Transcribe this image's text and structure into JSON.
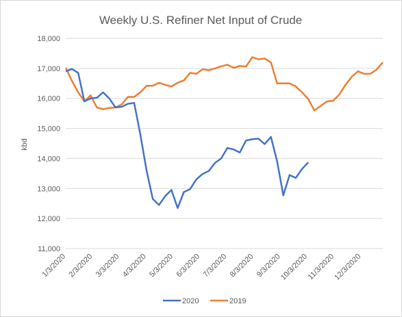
{
  "chart_data": {
    "type": "line",
    "title": "Weekly U.S. Refiner Net Input of Crude",
    "xlabel": "",
    "ylabel": "kbd",
    "ylim": [
      11000,
      18000
    ],
    "yticks": [
      "11,000",
      "12,000",
      "13,000",
      "14,000",
      "15,000",
      "16,000",
      "17,000",
      "18,000"
    ],
    "xticks": [
      "1/3/2020",
      "2/3/2020",
      "3/3/2020",
      "4/3/2020",
      "5/3/2020",
      "6/3/2020",
      "7/3/2020",
      "8/3/2020",
      "9/3/2020",
      "10/3/2020",
      "11/3/2020",
      "12/3/2020"
    ],
    "grid": "horizontal",
    "legend_position": "bottom",
    "series": [
      {
        "name": "2020",
        "color": "#4472c4",
        "values": [
          16900,
          16980,
          16850,
          15900,
          16000,
          16020,
          16200,
          16000,
          15700,
          15720,
          15820,
          15850,
          14800,
          13600,
          12650,
          12450,
          12750,
          12950,
          12350,
          12880,
          12980,
          13300,
          13480,
          13580,
          13850,
          14000,
          14350,
          14300,
          14200,
          14600,
          14640,
          14660,
          14480,
          14720,
          13900,
          12770,
          13450,
          13350,
          13650,
          13870
        ]
      },
      {
        "name": "2019",
        "color": "#ed7d31",
        "values": [
          17020,
          16580,
          16200,
          15900,
          16100,
          15700,
          15640,
          15680,
          15700,
          15800,
          16050,
          16050,
          16200,
          16420,
          16420,
          16520,
          16450,
          16400,
          16520,
          16600,
          16850,
          16820,
          16970,
          16940,
          17000,
          17070,
          17120,
          17020,
          17080,
          17060,
          17370,
          17300,
          17330,
          17200,
          16500,
          16500,
          16500,
          16400,
          16200,
          15980,
          15600,
          15750,
          15900,
          15920,
          16130,
          16450,
          16720,
          16900,
          16820,
          16820,
          16960,
          17200
        ]
      }
    ]
  }
}
